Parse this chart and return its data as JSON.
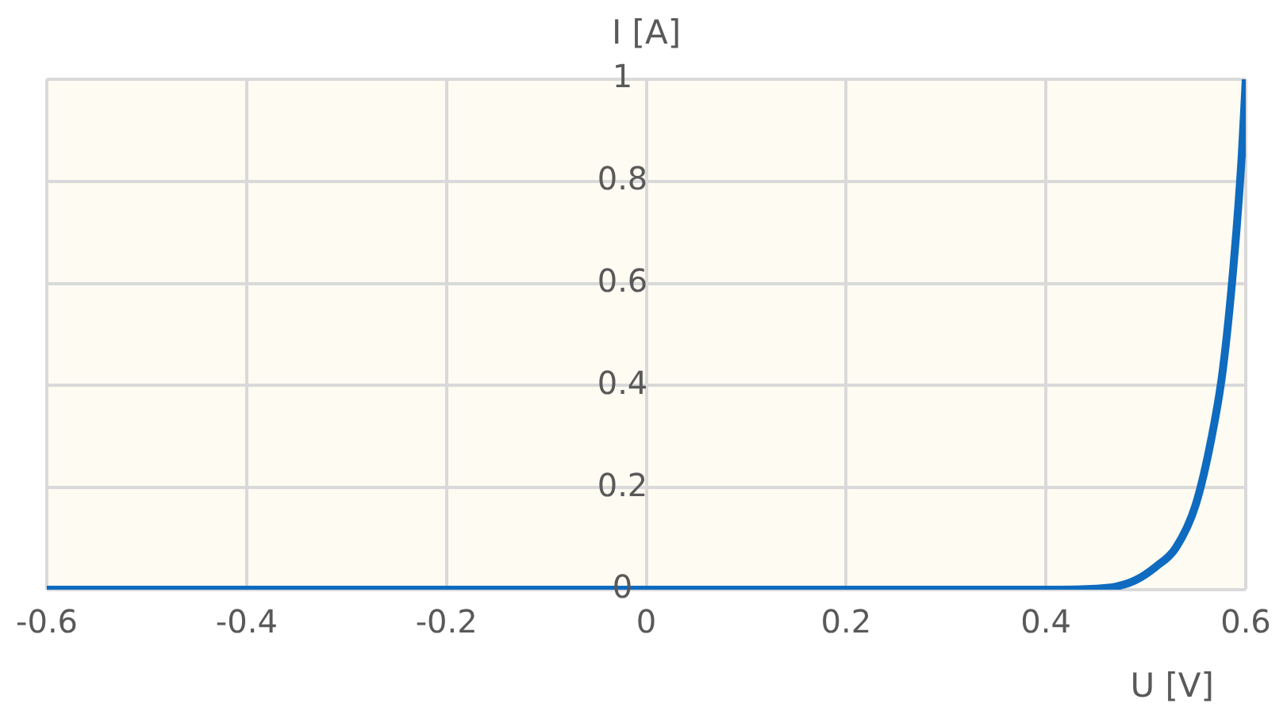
{
  "chart_data": {
    "type": "line",
    "xlabel": "U [V]",
    "ylabel": "I [A]",
    "x": [
      -0.6,
      0.0,
      0.4,
      0.45,
      0.47,
      0.49,
      0.51,
      0.53,
      0.55,
      0.566,
      0.577,
      0.588,
      0.596,
      0.6
    ],
    "series": [
      {
        "color": "#0e6bbf",
        "values": [
          0,
          0,
          0,
          0.002,
          0.006,
          0.019,
          0.045,
          0.082,
          0.167,
          0.3,
          0.43,
          0.64,
          0.85,
          1.0
        ]
      }
    ],
    "xlim": [
      -0.6,
      0.6
    ],
    "xticks": [
      -0.6,
      -0.4,
      -0.2,
      0,
      0.2,
      0.4,
      0.6
    ],
    "ylim": [
      0,
      1
    ],
    "yticks": [
      0,
      0.2,
      0.4,
      0.6,
      0.8,
      1
    ],
    "grid": true,
    "marker": "none",
    "line_style": "solid",
    "legend": false
  }
}
